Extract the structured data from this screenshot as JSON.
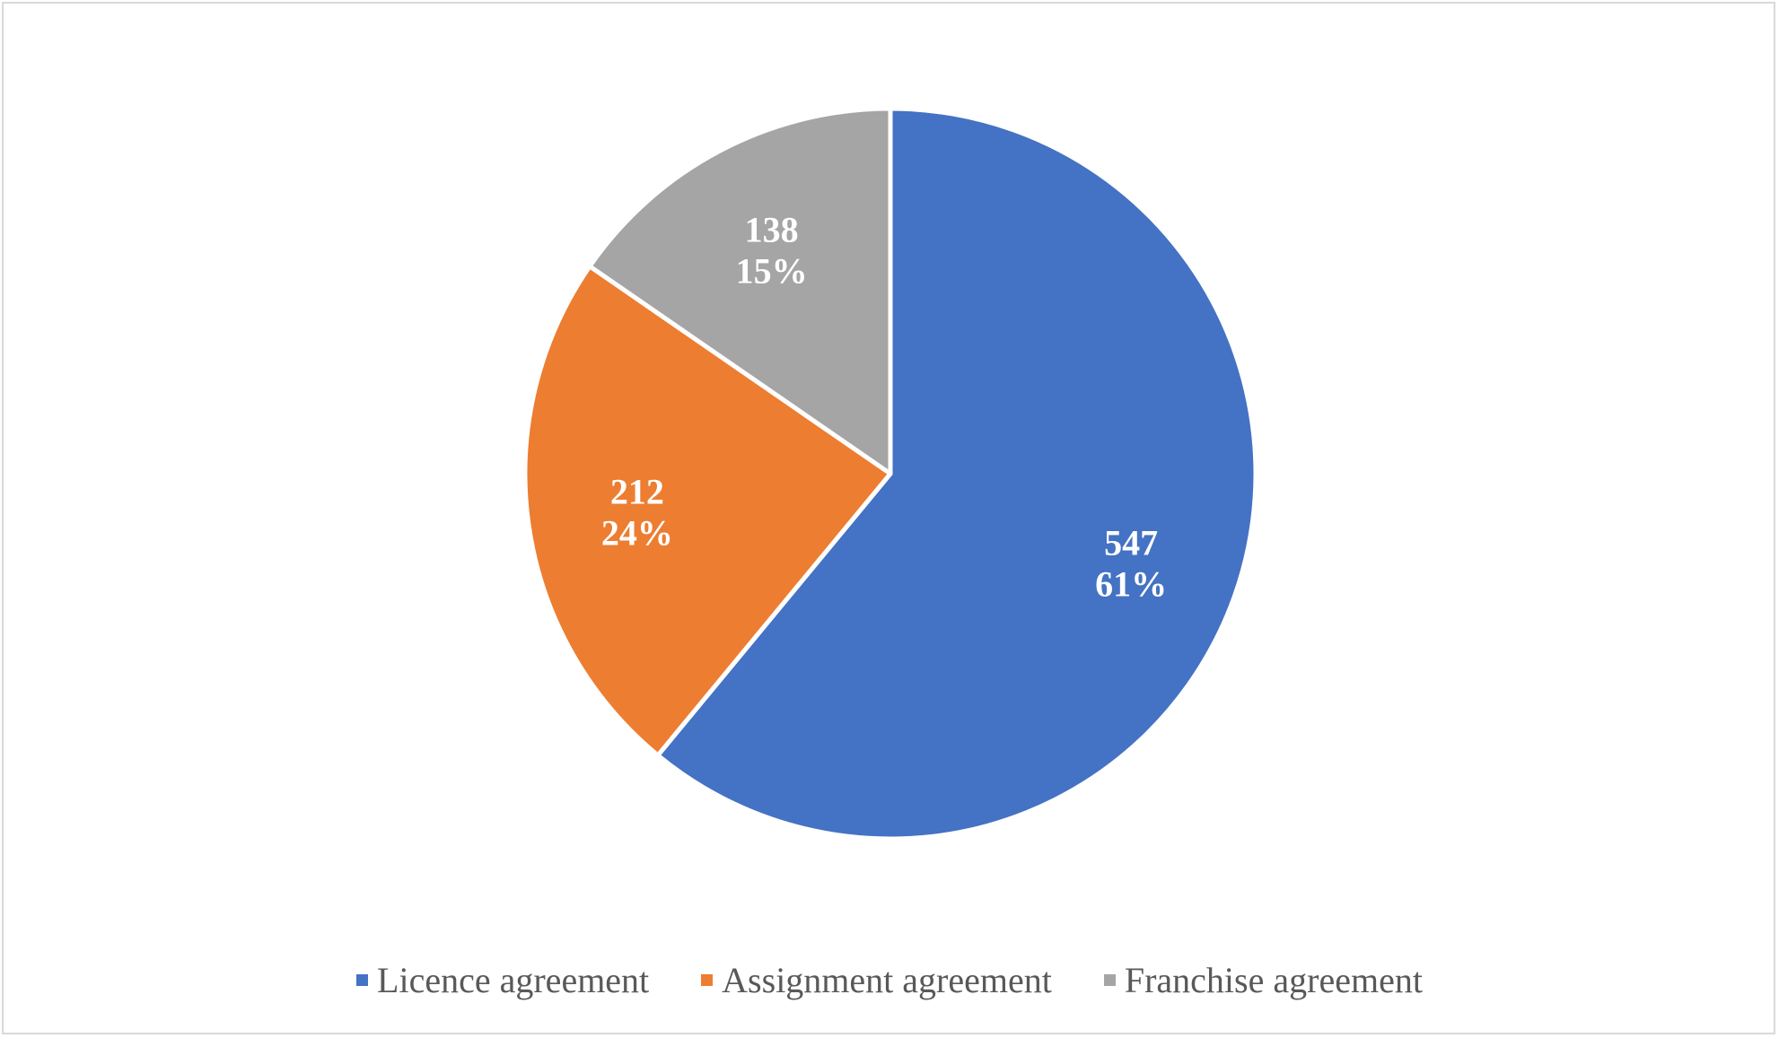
{
  "chart_data": {
    "type": "pie",
    "categories": [
      "Licence agreement",
      "Assignment agreement",
      "Franchise agreement"
    ],
    "values": [
      547,
      212,
      138
    ],
    "percentages": [
      "61%",
      "24%",
      "15%"
    ],
    "value_labels": [
      "547",
      "212",
      "138"
    ],
    "colors": [
      "#4472c4",
      "#ed7d31",
      "#a5a5a5"
    ],
    "legend_position": "bottom",
    "start_angle": "12 o'clock, clockwise"
  }
}
